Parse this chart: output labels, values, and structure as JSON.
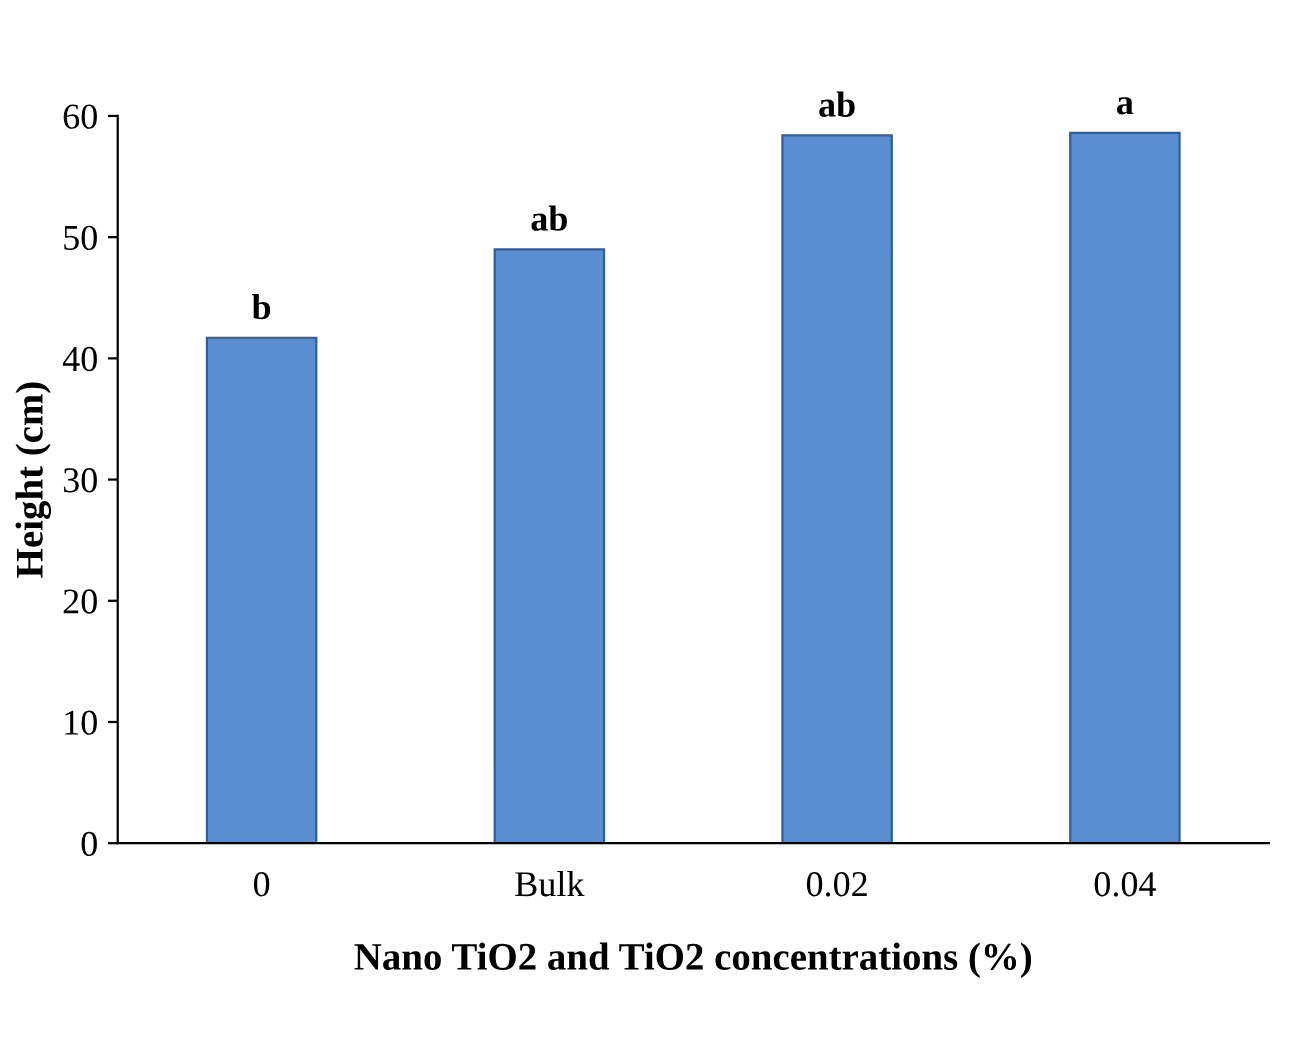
{
  "chart_data": {
    "type": "bar",
    "categories": [
      "0",
      "Bulk",
      "0.02",
      "0.04"
    ],
    "values": [
      41.7,
      49.0,
      58.4,
      58.6
    ],
    "color": "#5a8ed0",
    "xlabel": "Nano TiO2 and TiO2 concentrations (%)",
    "ylabel": "Height (cm)",
    "ylim": [
      0,
      60
    ],
    "yticks": [
      0,
      10,
      20,
      30,
      40,
      50,
      60
    ],
    "annotations": [
      {
        "text": "b",
        "x": "0",
        "y": 41.7
      },
      {
        "text": "ab",
        "x": "Bulk",
        "y": 49.0
      },
      {
        "text": "ab",
        "x": "0.02",
        "y": 58.4
      },
      {
        "text": "a",
        "x": "0.04",
        "y": 58.6
      }
    ],
    "grid": false,
    "legend": false
  }
}
